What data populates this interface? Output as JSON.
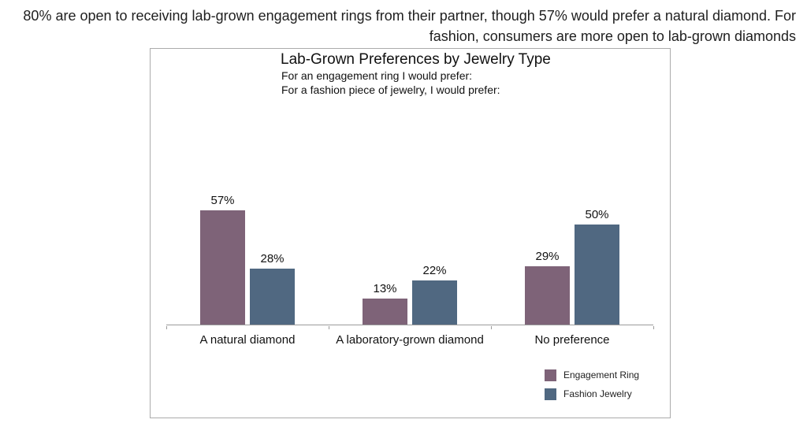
{
  "headline": {
    "lines": [
      "80% are open to receiving lab-grown engagement rings from their partner, though 57% would prefer a natural diamond. For",
      "fashion, consumers are more open to lab-grown diamonds"
    ]
  },
  "chart_data": {
    "type": "bar",
    "title": "Lab-Grown Preferences by Jewelry Type",
    "subtitles": [
      "For an engagement ring I would prefer:",
      "For a fashion piece of jewelry, I would prefer:"
    ],
    "categories": [
      "A natural diamond",
      "A laboratory-grown diamond",
      "No preference"
    ],
    "series": [
      {
        "name": "Engagement Ring",
        "values": [
          57,
          13,
          29
        ],
        "color": "#7e6378"
      },
      {
        "name": "Fashion Jewelry",
        "values": [
          28,
          22,
          50
        ],
        "color": "#506881"
      }
    ],
    "value_suffix": "%",
    "ylim": [
      0,
      60
    ],
    "grid": false,
    "y_axis_visible": false,
    "legend_position": "bottom-right",
    "axis_color": "#9b9b9b",
    "frame_color": "#ababab"
  }
}
